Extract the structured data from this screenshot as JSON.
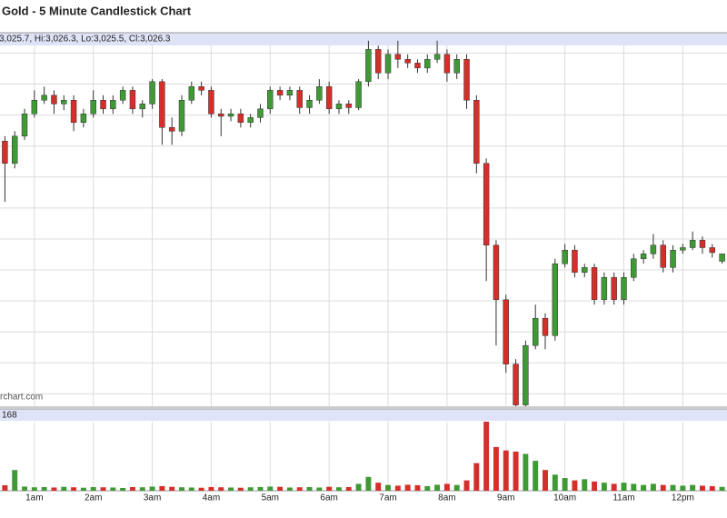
{
  "chart_data": {
    "type": "candlestick",
    "title": "Gold - 5 Minute Candlestick Chart",
    "info": "3,025.7, Hi:3,026.3, Lo:3,025.5, Cl:3,026.3",
    "watermark": "rchart.com",
    "x": [
      0,
      1,
      2,
      3,
      4,
      5,
      6,
      7,
      8,
      9,
      10,
      11,
      12,
      13,
      14,
      15,
      16,
      17,
      18,
      19,
      20,
      21,
      22,
      23,
      24,
      25,
      26,
      27,
      28,
      29,
      30,
      31,
      32,
      33,
      34,
      35,
      36,
      37,
      38,
      39,
      40,
      41,
      42,
      43,
      44,
      45,
      46,
      47,
      48,
      49,
      50,
      51,
      52,
      53,
      54,
      55,
      56,
      57,
      58,
      59,
      60,
      61,
      62,
      63,
      64,
      65,
      66,
      67,
      68,
      69,
      70,
      71,
      72,
      73
    ],
    "open": [
      3035.4,
      3033.6,
      3035.8,
      3037.6,
      3038.7,
      3039.1,
      3038.4,
      3038.7,
      3036.9,
      3037.6,
      3038.7,
      3038.0,
      3038.7,
      3039.5,
      3038.0,
      3038.4,
      3040.2,
      3036.5,
      3036.2,
      3038.7,
      3039.8,
      3039.5,
      3037.6,
      3037.4,
      3037.6,
      3036.9,
      3037.3,
      3038.0,
      3039.5,
      3039.1,
      3039.5,
      3038.1,
      3038.7,
      3039.8,
      3038.0,
      3038.4,
      3038.1,
      3040.2,
      3042.8,
      3040.9,
      3042.4,
      3042.0,
      3041.7,
      3041.3,
      3042.0,
      3042.4,
      3040.9,
      3042.0,
      3038.7,
      3033.6,
      3027.0,
      3022.6,
      3017.4,
      3014.1,
      3018.9,
      3021.1,
      3019.7,
      3025.5,
      3026.6,
      3024.8,
      3025.2,
      3022.6,
      3024.4,
      3022.6,
      3024.4,
      3025.9,
      3026.3,
      3027.0,
      3025.2,
      3026.6,
      3026.8,
      3027.4,
      3026.8,
      3025.7
    ],
    "high": [
      3035.8,
      3036.2,
      3038.0,
      3039.5,
      3039.8,
      3039.5,
      3039.1,
      3039.1,
      3038.0,
      3039.5,
      3039.1,
      3039.1,
      3039.8,
      3039.8,
      3038.7,
      3040.4,
      3040.4,
      3037.3,
      3039.1,
      3040.2,
      3040.2,
      3039.8,
      3038.0,
      3038.0,
      3038.0,
      3037.6,
      3038.4,
      3039.8,
      3039.8,
      3039.8,
      3039.8,
      3039.1,
      3040.4,
      3040.2,
      3038.7,
      3038.7,
      3040.4,
      3043.5,
      3043.1,
      3042.8,
      3043.5,
      3042.4,
      3042.0,
      3042.4,
      3043.5,
      3042.8,
      3042.4,
      3042.4,
      3039.1,
      3034.0,
      3027.4,
      3023.0,
      3017.8,
      3019.3,
      3022.2,
      3021.5,
      3025.9,
      3027.1,
      3027.0,
      3025.5,
      3025.5,
      3024.8,
      3024.8,
      3024.8,
      3026.3,
      3026.6,
      3027.9,
      3027.4,
      3027.0,
      3027.1,
      3028.1,
      3027.7,
      3027.1,
      3026.3
    ],
    "low": [
      3030.5,
      3033.2,
      3035.5,
      3037.3,
      3038.4,
      3037.6,
      3037.9,
      3036.2,
      3036.5,
      3037.3,
      3037.6,
      3037.6,
      3038.4,
      3037.6,
      3037.3,
      3038.0,
      3035.1,
      3035.1,
      3035.8,
      3038.4,
      3039.1,
      3037.3,
      3035.8,
      3037.0,
      3036.5,
      3036.5,
      3036.9,
      3037.6,
      3038.7,
      3038.7,
      3037.6,
      3037.6,
      3038.4,
      3037.6,
      3037.6,
      3037.6,
      3037.9,
      3039.8,
      3040.4,
      3040.4,
      3041.3,
      3041.3,
      3040.9,
      3040.9,
      3041.7,
      3040.2,
      3040.4,
      3038.0,
      3032.8,
      3024.1,
      3018.9,
      3016.7,
      3014.0,
      3014.0,
      3018.6,
      3018.6,
      3019.3,
      3025.2,
      3024.4,
      3024.4,
      3022.2,
      3022.2,
      3022.2,
      3022.2,
      3024.1,
      3025.5,
      3025.9,
      3024.8,
      3024.8,
      3026.3,
      3026.6,
      3026.3,
      3026.0,
      3025.5
    ],
    "close": [
      3033.6,
      3035.8,
      3037.6,
      3038.7,
      3039.1,
      3038.4,
      3038.7,
      3036.9,
      3037.6,
      3038.7,
      3038.0,
      3038.7,
      3039.5,
      3038.0,
      3038.4,
      3040.2,
      3036.5,
      3036.2,
      3038.7,
      3039.8,
      3039.5,
      3037.6,
      3037.4,
      3037.6,
      3036.9,
      3037.3,
      3038.0,
      3039.5,
      3039.1,
      3039.5,
      3038.1,
      3038.7,
      3039.8,
      3038.0,
      3038.4,
      3038.1,
      3040.2,
      3042.8,
      3040.9,
      3042.4,
      3042.0,
      3041.7,
      3041.3,
      3042.0,
      3042.4,
      3040.9,
      3042.0,
      3038.7,
      3033.6,
      3027.0,
      3022.6,
      3017.4,
      3014.1,
      3018.9,
      3021.1,
      3019.7,
      3025.5,
      3026.6,
      3024.8,
      3025.2,
      3022.6,
      3024.4,
      3022.6,
      3024.4,
      3025.9,
      3026.3,
      3027.0,
      3025.2,
      3026.6,
      3026.8,
      3027.4,
      3026.8,
      3026.4,
      3026.3
    ],
    "volume": [
      240,
      900,
      180,
      150,
      160,
      140,
      170,
      150,
      130,
      160,
      150,
      140,
      120,
      160,
      150,
      180,
      200,
      170,
      150,
      140,
      130,
      160,
      150,
      140,
      130,
      150,
      160,
      180,
      170,
      140,
      150,
      160,
      140,
      170,
      150,
      160,
      300,
      600,
      350,
      250,
      220,
      260,
      240,
      200,
      260,
      300,
      250,
      450,
      1200,
      3000,
      1900,
      1750,
      1700,
      1600,
      1300,
      900,
      700,
      550,
      450,
      500,
      400,
      350,
      300,
      350,
      300,
      250,
      300,
      250,
      250,
      220,
      250,
      220,
      200,
      168
    ],
    "colors": {
      "up": "#3f9a35",
      "down": "#d42f2a"
    },
    "xlim": [
      -0.5,
      73.5
    ],
    "ylim": [
      3014,
      3044
    ],
    "vlim": [
      0,
      3000
    ],
    "yticks": [
      3015,
      3017.5,
      3020,
      3022.5,
      3025,
      3027.5,
      3030,
      3032.5,
      3035,
      3037.5,
      3040,
      3042.5
    ],
    "xticks": [
      {
        "value": 3,
        "label": "1am"
      },
      {
        "value": 9,
        "label": "2am"
      },
      {
        "value": 15,
        "label": "3am"
      },
      {
        "value": 21,
        "label": "4am"
      },
      {
        "value": 27,
        "label": "5am"
      },
      {
        "value": 33,
        "label": "6am"
      },
      {
        "value": 39,
        "label": "7am"
      },
      {
        "value": 45,
        "label": "8am"
      },
      {
        "value": 51,
        "label": "9am"
      },
      {
        "value": 57,
        "label": "10am"
      },
      {
        "value": 63,
        "label": "11am"
      },
      {
        "value": 69,
        "label": "12pm"
      }
    ],
    "grid": true
  }
}
